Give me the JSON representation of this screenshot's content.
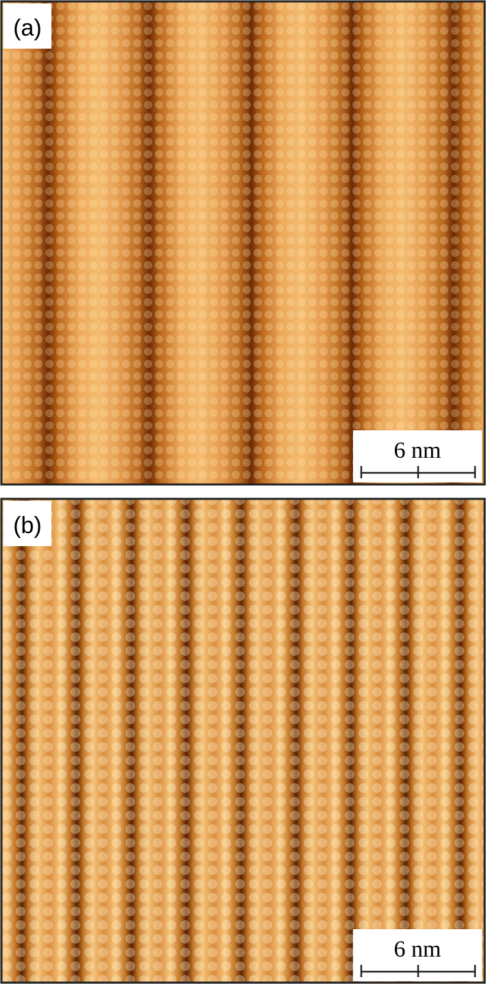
{
  "panels": [
    {
      "label": "(a)",
      "scale_bar": "6 nm"
    },
    {
      "label": "(b)",
      "scale_bar": "6 nm"
    }
  ]
}
